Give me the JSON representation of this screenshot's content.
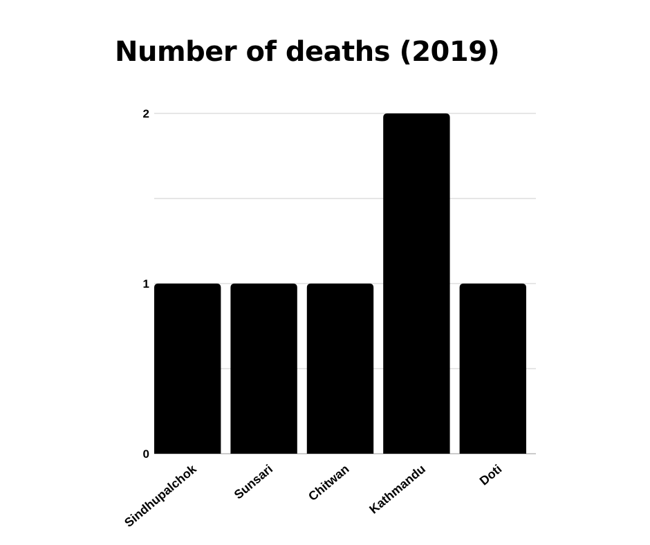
{
  "chart_data": {
    "type": "bar",
    "title": "Number of deaths (2019)",
    "categories": [
      "Sindhupalchok",
      "Sunsari",
      "Chitwan",
      "Kathmandu",
      "Doti"
    ],
    "values": [
      1,
      1,
      1,
      2,
      1
    ],
    "ylim": [
      0,
      2
    ],
    "yticks": [
      0,
      1,
      2
    ],
    "ytick_labels": [
      "0",
      "1",
      "2"
    ],
    "grid": true,
    "legend": "none",
    "colors": {
      "bar": "#000000",
      "grid": "#cccccc",
      "text": "#000000"
    }
  }
}
